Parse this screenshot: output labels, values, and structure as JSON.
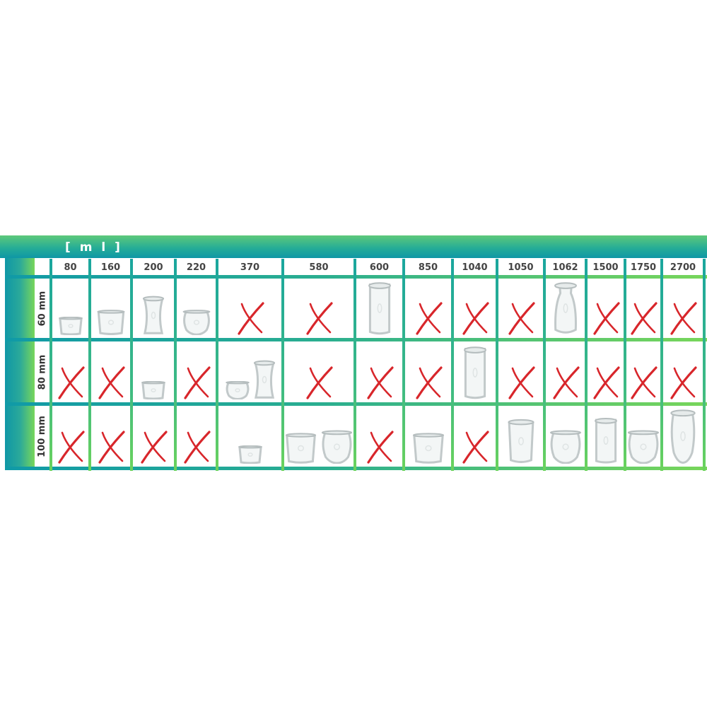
{
  "unit_label": "[ m l ]",
  "colors": {
    "accent_teal": "#0f97a6",
    "accent_green": "#78d65a",
    "cross": "#d8262b"
  },
  "columns": [
    "80",
    "160",
    "200",
    "220",
    "370",
    "580",
    "600",
    "850",
    "1040",
    "1050",
    "1062",
    "1500",
    "1750",
    "2700"
  ],
  "rows": [
    {
      "label": "60 mm",
      "cells": [
        [
          {
            "shape": "mold",
            "size": "s"
          }
        ],
        [
          {
            "shape": "mold",
            "size": "m"
          }
        ],
        [
          {
            "shape": "deco",
            "size": "m"
          }
        ],
        [
          {
            "shape": "tulip",
            "size": "m"
          }
        ],
        "cross",
        "cross",
        [
          {
            "shape": "cylinder",
            "size": "xl"
          }
        ],
        "cross",
        "cross",
        "cross",
        [
          {
            "shape": "bottle",
            "size": "xl"
          }
        ],
        "cross",
        "cross",
        "cross"
      ]
    },
    {
      "label": "80 mm",
      "cells": [
        "cross",
        "cross",
        [
          {
            "shape": "mold",
            "size": "s"
          }
        ],
        "cross",
        [
          {
            "shape": "tulip",
            "size": "s"
          },
          {
            "shape": "deco",
            "size": "l"
          }
        ],
        "cross",
        "cross",
        "cross",
        [
          {
            "shape": "cylinder",
            "size": "xl"
          }
        ],
        "cross",
        "cross",
        "cross",
        "cross",
        "cross"
      ]
    },
    {
      "label": "100 mm",
      "cells": [
        "cross",
        "cross",
        "cross",
        "cross",
        [
          {
            "shape": "mold",
            "size": "s"
          }
        ],
        [
          {
            "shape": "mold",
            "size": "l"
          },
          {
            "shape": "tulip",
            "size": "l"
          }
        ],
        "cross",
        [
          {
            "shape": "mold",
            "size": "l"
          }
        ],
        "cross",
        [
          {
            "shape": "mold",
            "size": "xl"
          }
        ],
        [
          {
            "shape": "tulip",
            "size": "l"
          }
        ],
        [
          {
            "shape": "cylinder",
            "size": "l"
          }
        ],
        [
          {
            "shape": "tulip",
            "size": "l"
          }
        ],
        [
          {
            "shape": "tulip",
            "size": "xl"
          }
        ]
      ]
    }
  ]
}
